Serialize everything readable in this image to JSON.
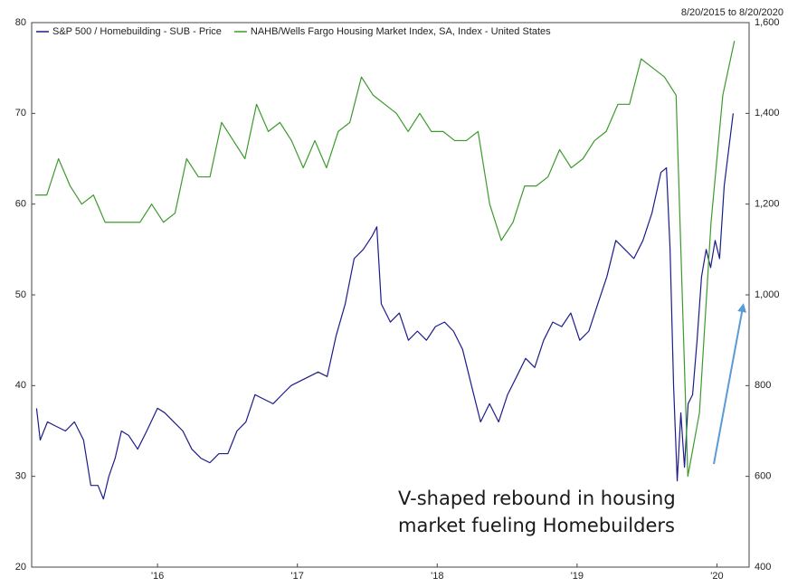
{
  "chart_data": {
    "type": "line",
    "date_range": "8/20/2015 to 8/20/2020",
    "annotation": [
      "V-shaped rebound in housing",
      "market fueling Homebuilders"
    ],
    "xlim": [
      2015.6,
      2020.73
    ],
    "xticks": [
      {
        "value": 2016.5,
        "label": "'16"
      },
      {
        "value": 2017.5,
        "label": "'17"
      },
      {
        "value": 2018.5,
        "label": "'18"
      },
      {
        "value": 2019.5,
        "label": "'19"
      },
      {
        "value": 2020.5,
        "label": "'20"
      }
    ],
    "ylim": [
      20,
      80
    ],
    "yticks": [
      20,
      30,
      40,
      50,
      60,
      70,
      80
    ],
    "y2lim": [
      400,
      1600
    ],
    "y2ticks": [
      400,
      600,
      800,
      {
        "value": 1000,
        "label": "1,000"
      },
      {
        "value": 1200,
        "label": "1,200"
      },
      {
        "value": 1400,
        "label": "1,400"
      },
      {
        "value": 1600,
        "label": "1,600"
      }
    ],
    "grid": false,
    "legend": "top-left",
    "series": [
      {
        "name": "S&P 500 / Homebuilding - SUB - Price",
        "color": "#1c1c8a",
        "axis": "y2",
        "x": [
          2015.635,
          2015.661,
          2015.713,
          2015.777,
          2015.842,
          2015.906,
          2015.971,
          2016.023,
          2016.074,
          2016.113,
          2016.152,
          2016.197,
          2016.242,
          2016.294,
          2016.358,
          2016.423,
          2016.5,
          2016.552,
          2016.616,
          2016.681,
          2016.745,
          2016.81,
          2016.874,
          2016.939,
          2017.003,
          2017.068,
          2017.132,
          2017.197,
          2017.261,
          2017.326,
          2017.39,
          2017.455,
          2017.519,
          2017.584,
          2017.648,
          2017.713,
          2017.777,
          2017.842,
          2017.906,
          2017.971,
          2018.035,
          2018.068,
          2018.1,
          2018.165,
          2018.229,
          2018.294,
          2018.358,
          2018.423,
          2018.487,
          2018.552,
          2018.616,
          2018.681,
          2018.745,
          2018.81,
          2018.874,
          2018.939,
          2019.003,
          2019.068,
          2019.132,
          2019.197,
          2019.261,
          2019.326,
          2019.39,
          2019.455,
          2019.519,
          2019.584,
          2019.648,
          2019.713,
          2019.777,
          2019.842,
          2019.906,
          2019.971,
          2020.035,
          2020.1,
          2020.139,
          2020.165,
          2020.19,
          2020.216,
          2020.242,
          2020.268,
          2020.294,
          2020.326,
          2020.358,
          2020.39,
          2020.423,
          2020.455,
          2020.487,
          2020.519,
          2020.552,
          2020.584,
          2020.616
        ],
        "values": [
          750,
          680,
          720,
          710,
          700,
          720,
          680,
          580,
          580,
          550,
          600,
          640,
          700,
          690,
          660,
          700,
          750,
          740,
          720,
          700,
          660,
          640,
          630,
          650,
          650,
          700,
          720,
          780,
          770,
          760,
          780,
          800,
          810,
          820,
          830,
          820,
          910,
          980,
          1080,
          1100,
          1130,
          1150,
          980,
          940,
          960,
          900,
          920,
          900,
          930,
          940,
          920,
          880,
          800,
          720,
          760,
          720,
          780,
          820,
          860,
          840,
          900,
          940,
          930,
          960,
          900,
          920,
          980,
          1040,
          1120,
          1100,
          1080,
          1120,
          1180,
          1270,
          1280,
          1100,
          800,
          590,
          740,
          620,
          760,
          780,
          900,
          1040,
          1100,
          1060,
          1120,
          1080,
          1240,
          1320,
          1400
        ]
      },
      {
        "name": "NAHB/Wells Fargo Housing Market Index, SA, Index - United States",
        "color": "#3c9a2c",
        "axis": "y",
        "x": [
          2015.625,
          2015.708,
          2015.792,
          2015.875,
          2015.958,
          2016.042,
          2016.125,
          2016.208,
          2016.292,
          2016.375,
          2016.458,
          2016.542,
          2016.625,
          2016.708,
          2016.792,
          2016.875,
          2016.958,
          2017.042,
          2017.125,
          2017.208,
          2017.292,
          2017.375,
          2017.458,
          2017.542,
          2017.625,
          2017.708,
          2017.792,
          2017.875,
          2017.958,
          2018.042,
          2018.125,
          2018.208,
          2018.292,
          2018.375,
          2018.458,
          2018.542,
          2018.625,
          2018.708,
          2018.792,
          2018.875,
          2018.958,
          2019.042,
          2019.125,
          2019.208,
          2019.292,
          2019.375,
          2019.458,
          2019.542,
          2019.625,
          2019.708,
          2019.792,
          2019.875,
          2019.958,
          2020.042,
          2020.125,
          2020.208,
          2020.292,
          2020.375,
          2020.458,
          2020.542,
          2020.625
        ],
        "values": [
          61,
          61,
          65,
          62,
          60,
          61,
          58,
          58,
          58,
          58,
          60,
          58,
          59,
          65,
          63,
          63,
          69,
          67,
          65,
          71,
          68,
          69,
          67,
          64,
          67,
          64,
          68,
          69,
          74,
          72,
          71,
          70,
          68,
          70,
          68,
          68,
          67,
          67,
          68,
          60,
          56,
          58,
          62,
          62,
          63,
          66,
          64,
          65,
          67,
          68,
          71,
          71,
          76,
          75,
          74,
          72,
          30,
          37,
          58,
          72,
          78
        ]
      }
    ]
  }
}
